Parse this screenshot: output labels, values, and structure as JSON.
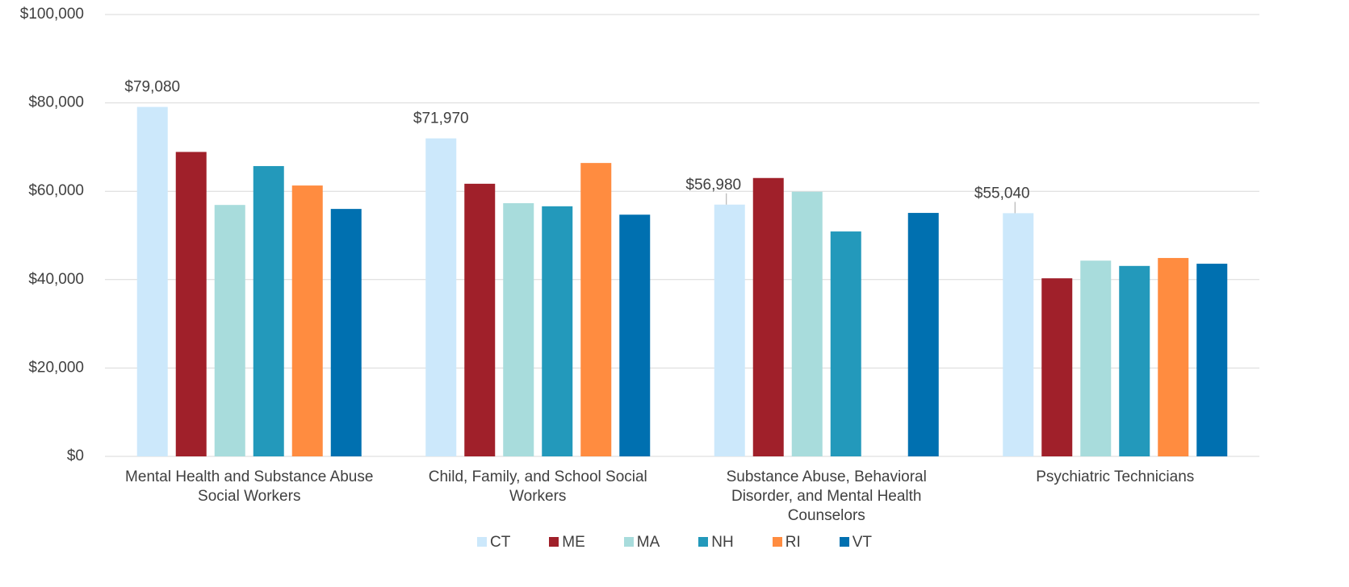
{
  "chart_data": {
    "type": "bar",
    "categories": [
      "Mental Health and Substance Abuse Social Workers",
      "Child, Family, and School Social Workers",
      "Substance Abuse, Behavioral Disorder, and Mental Health Counselors",
      "Psychiatric Technicians"
    ],
    "series": [
      {
        "name": "CT",
        "color": "#cce8fb",
        "values": [
          79080,
          71970,
          56980,
          55040
        ],
        "value_labels": [
          "$79,080",
          "$71,970",
          "$56,980",
          "$55,040"
        ]
      },
      {
        "name": "ME",
        "color": "#a0202a",
        "values": [
          68900,
          61700,
          63000,
          40300
        ]
      },
      {
        "name": "MA",
        "color": "#a8dcdc",
        "values": [
          56900,
          57300,
          59900,
          44300
        ]
      },
      {
        "name": "NH",
        "color": "#2399bb",
        "values": [
          65700,
          56600,
          50900,
          43100
        ]
      },
      {
        "name": "RI",
        "color": "#ff8c40",
        "values": [
          61300,
          66400,
          null,
          44900
        ]
      },
      {
        "name": "VT",
        "color": "#0070b0",
        "values": [
          56000,
          54700,
          55100,
          43600
        ]
      }
    ],
    "ylim": [
      0,
      100000
    ],
    "yticks": [
      {
        "value": 0,
        "label": "$0"
      },
      {
        "value": 20000,
        "label": "$20,000"
      },
      {
        "value": 40000,
        "label": "$40,000"
      },
      {
        "value": 60000,
        "label": "$60,000"
      },
      {
        "value": 80000,
        "label": "$80,000"
      },
      {
        "value": 100000,
        "label": "$100,000"
      }
    ],
    "grid": true,
    "legend": "bottom"
  }
}
